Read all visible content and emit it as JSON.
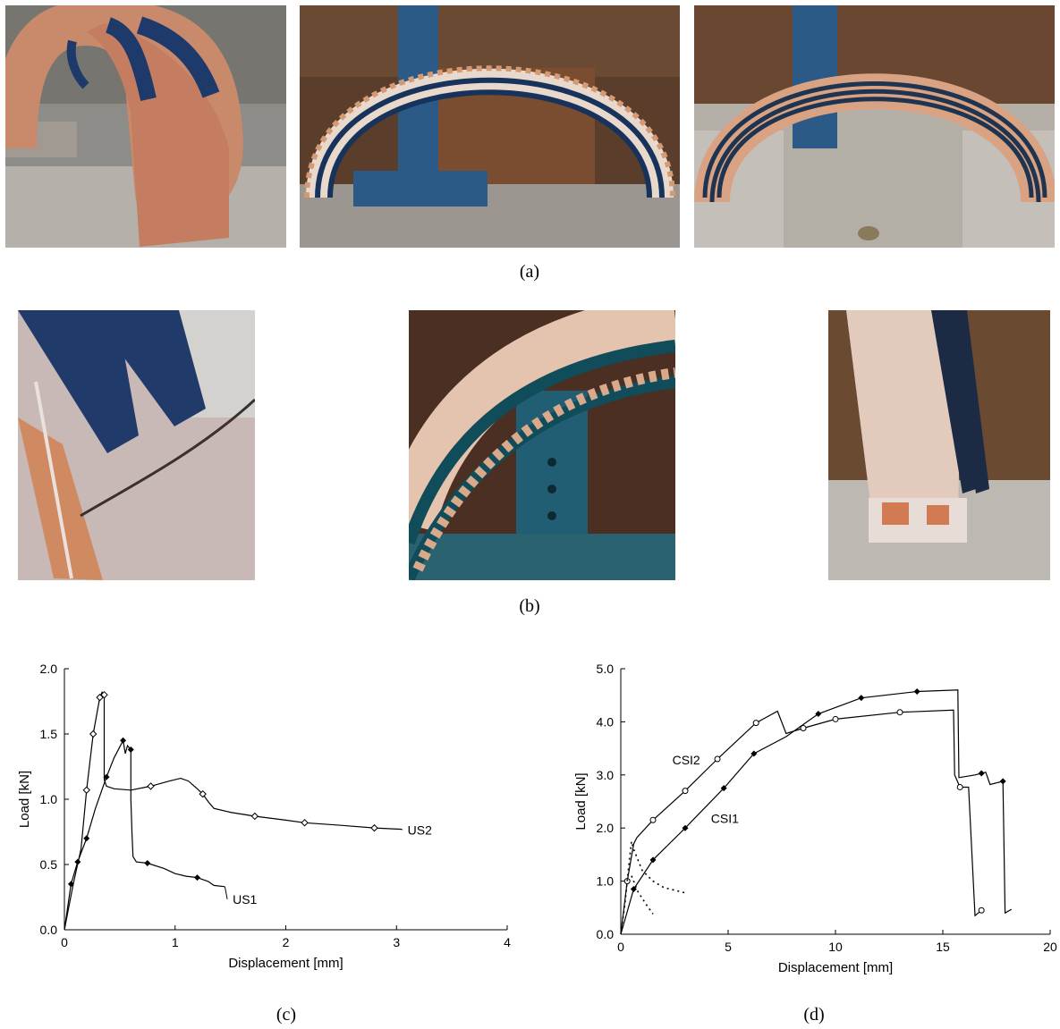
{
  "figure": {
    "caption_a": "(a)",
    "caption_b": "(b)",
    "caption_c": "(c)",
    "caption_d": "(d)",
    "photos_a": [
      {
        "name": "arch-photo-strengthened-extrados"
      },
      {
        "name": "arch-photo-strengthened-intrados"
      },
      {
        "name": "arch-photo-strengthened-bands"
      }
    ],
    "photos_b": [
      {
        "name": "failure-photo-crack"
      },
      {
        "name": "failure-photo-delamination"
      },
      {
        "name": "failure-photo-support-crush"
      }
    ]
  },
  "chart_data": [
    {
      "type": "line",
      "panel": "(c)",
      "title": "",
      "xlabel": "Displacement [mm]",
      "ylabel": "Load [kN]",
      "xlim": [
        0,
        4
      ],
      "ylim": [
        0,
        2.0
      ],
      "xticks": [
        0,
        1,
        2,
        3,
        4
      ],
      "yticks": [
        0.0,
        0.5,
        1.0,
        1.5,
        2.0
      ],
      "grid": false,
      "series": [
        {
          "name": "US2",
          "marker": "open-diamond",
          "points": [
            [
              0,
              0
            ],
            [
              0.08,
              0.35
            ],
            [
              0.15,
              0.62
            ],
            [
              0.2,
              1.07
            ],
            [
              0.26,
              1.5
            ],
            [
              0.32,
              1.78
            ],
            [
              0.34,
              1.82
            ],
            [
              0.36,
              1.8
            ],
            [
              0.36,
              1.15
            ],
            [
              0.38,
              1.1
            ],
            [
              0.45,
              1.08
            ],
            [
              0.6,
              1.07
            ],
            [
              0.78,
              1.1
            ],
            [
              0.95,
              1.14
            ],
            [
              1.05,
              1.16
            ],
            [
              1.12,
              1.14
            ],
            [
              1.2,
              1.08
            ],
            [
              1.25,
              1.04
            ],
            [
              1.3,
              0.98
            ],
            [
              1.35,
              0.93
            ],
            [
              1.5,
              0.9
            ],
            [
              1.72,
              0.87
            ],
            [
              2.0,
              0.84
            ],
            [
              2.17,
              0.82
            ],
            [
              2.5,
              0.8
            ],
            [
              2.8,
              0.78
            ],
            [
              3.05,
              0.77
            ]
          ],
          "marker_x": [
            0.2,
            0.26,
            0.32,
            0.36,
            0.78,
            1.25,
            1.72,
            2.17,
            2.8
          ]
        },
        {
          "name": "US1",
          "marker": "filled-diamond",
          "points": [
            [
              0,
              0
            ],
            [
              0.06,
              0.35
            ],
            [
              0.12,
              0.52
            ],
            [
              0.2,
              0.7
            ],
            [
              0.28,
              0.93
            ],
            [
              0.38,
              1.17
            ],
            [
              0.45,
              1.32
            ],
            [
              0.53,
              1.45
            ],
            [
              0.55,
              1.35
            ],
            [
              0.57,
              1.41
            ],
            [
              0.6,
              1.38
            ],
            [
              0.6,
              1.0
            ],
            [
              0.61,
              0.75
            ],
            [
              0.62,
              0.56
            ],
            [
              0.65,
              0.52
            ],
            [
              0.75,
              0.51
            ],
            [
              0.9,
              0.47
            ],
            [
              1.0,
              0.43
            ],
            [
              1.1,
              0.41
            ],
            [
              1.2,
              0.4
            ],
            [
              1.3,
              0.37
            ],
            [
              1.35,
              0.34
            ],
            [
              1.45,
              0.33
            ]
          ],
          "marker_x": [
            0.06,
            0.12,
            0.2,
            0.38,
            0.53,
            0.6,
            0.75,
            1.2
          ]
        }
      ]
    },
    {
      "type": "line",
      "panel": "(d)",
      "title": "",
      "xlabel": "Displacement [mm]",
      "ylabel": "Load [kN]",
      "xlim": [
        0,
        20
      ],
      "ylim": [
        0,
        5.0
      ],
      "xticks": [
        0,
        5,
        10,
        15,
        20
      ],
      "yticks": [
        0.0,
        1.0,
        2.0,
        3.0,
        4.0,
        5.0
      ],
      "grid": false,
      "series": [
        {
          "name": "CSI2",
          "marker": "open-circle",
          "points": [
            [
              0,
              0
            ],
            [
              0.3,
              1.0
            ],
            [
              0.6,
              1.7
            ],
            [
              0.75,
              1.82
            ],
            [
              1.5,
              2.15
            ],
            [
              3.0,
              2.7
            ],
            [
              4.5,
              3.3
            ],
            [
              6.3,
              3.98
            ],
            [
              7.3,
              4.2
            ],
            [
              7.7,
              3.78
            ],
            [
              8.5,
              3.88
            ],
            [
              10.0,
              4.05
            ],
            [
              13.0,
              4.18
            ],
            [
              15.5,
              4.22
            ],
            [
              15.55,
              3.0
            ],
            [
              15.8,
              2.77
            ],
            [
              16.2,
              2.77
            ],
            [
              16.5,
              0.35
            ],
            [
              16.8,
              0.45
            ]
          ],
          "marker_x": [
            0.3,
            1.5,
            3.0,
            4.5,
            6.3,
            8.5,
            10.0,
            13.0,
            15.8,
            16.8
          ]
        },
        {
          "name": "CSI1",
          "marker": "filled-diamond",
          "points": [
            [
              0,
              0
            ],
            [
              0.6,
              0.85
            ],
            [
              1.5,
              1.4
            ],
            [
              3.0,
              2.0
            ],
            [
              4.8,
              2.75
            ],
            [
              6.2,
              3.4
            ],
            [
              7.7,
              3.72
            ],
            [
              9.2,
              4.15
            ],
            [
              11.2,
              4.45
            ],
            [
              13.8,
              4.57
            ],
            [
              15.7,
              4.6
            ],
            [
              15.75,
              2.95
            ],
            [
              16.5,
              3.0
            ],
            [
              17.0,
              3.05
            ],
            [
              17.2,
              2.82
            ],
            [
              17.8,
              2.88
            ],
            [
              17.9,
              0.4
            ],
            [
              18.2,
              0.47
            ]
          ],
          "marker_x": [
            0.6,
            1.5,
            3.0,
            4.8,
            6.2,
            9.2,
            11.2,
            13.8,
            16.8,
            17.8
          ]
        },
        {
          "name": "",
          "style": "dotted",
          "points": [
            [
              0,
              0
            ],
            [
              0.2,
              0.6
            ],
            [
              0.4,
              1.4
            ],
            [
              0.5,
              1.75
            ],
            [
              0.6,
              1.6
            ],
            [
              1.0,
              1.2
            ],
            [
              1.5,
              1.0
            ],
            [
              2.0,
              0.88
            ],
            [
              3.0,
              0.78
            ]
          ],
          "marker_x": []
        },
        {
          "name": "",
          "style": "dotted",
          "points": [
            [
              0.5,
              1.1
            ],
            [
              0.8,
              0.8
            ],
            [
              1.2,
              0.55
            ],
            [
              1.5,
              0.38
            ]
          ],
          "marker_x": []
        }
      ]
    }
  ]
}
